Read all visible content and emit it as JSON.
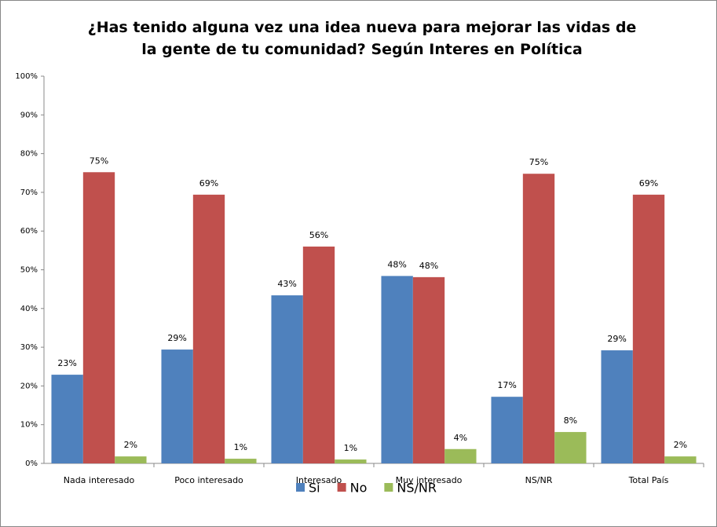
{
  "chart_data": {
    "type": "bar",
    "title": "¿Has tenido alguna vez una idea nueva para mejorar las vidas de la gente de tu comunidad? Según Interes en Política",
    "categories": [
      "Nada interesado",
      "Poco interesado",
      "Interesado",
      "Muy interesado",
      "NS/NR",
      "Total País"
    ],
    "series": [
      {
        "name": "Si",
        "color": "#4f81bd",
        "values": [
          22.9,
          29.4,
          43.4,
          48.4,
          17.2,
          29.2
        ],
        "value_labels": [
          "23%",
          "29%",
          "43%",
          "48%",
          "17%",
          "29%"
        ]
      },
      {
        "name": "No",
        "color": "#c0504d",
        "values": [
          75.2,
          69.4,
          56.0,
          48.1,
          74.8,
          69.4
        ],
        "value_labels": [
          "75%",
          "69%",
          "56%",
          "48%",
          "75%",
          "69%"
        ]
      },
      {
        "name": "NS/NR",
        "color": "#9bbb59",
        "values": [
          1.8,
          1.2,
          1.0,
          3.7,
          8.1,
          1.8
        ],
        "value_labels": [
          "2%",
          "1%",
          "1%",
          "4%",
          "8%",
          "2%"
        ]
      }
    ],
    "ylim": [
      0,
      100
    ],
    "yticks": [
      {
        "value": 0,
        "label": "0%"
      },
      {
        "value": 10,
        "label": "10%"
      },
      {
        "value": 20,
        "label": "20%"
      },
      {
        "value": 30,
        "label": "30%"
      },
      {
        "value": 40,
        "label": "40%"
      },
      {
        "value": 50,
        "label": "50%"
      },
      {
        "value": 60,
        "label": "60%"
      },
      {
        "value": 70,
        "label": "70%"
      },
      {
        "value": 80,
        "label": "80%"
      },
      {
        "value": 90,
        "label": "90%"
      },
      {
        "value": 100,
        "label": "100%"
      }
    ],
    "legend": "bottom"
  }
}
